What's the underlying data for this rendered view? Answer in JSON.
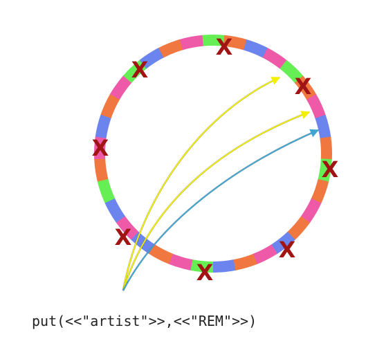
{
  "caption": "put(<<\"artist\">>,<<\"REM\">>)",
  "ring": {
    "segments": [
      "green",
      "orange",
      "blue",
      "pink",
      "green",
      "orange",
      "pink",
      "blue",
      "orange",
      "green",
      "orange",
      "pink",
      "orange",
      "blue",
      "pink",
      "orange",
      "blue",
      "green",
      "pink",
      "orange",
      "blue",
      "pink",
      "blue",
      "green",
      "orange",
      "pink",
      "blue",
      "orange",
      "pink",
      "green",
      "blue",
      "orange",
      "pink"
    ],
    "failed_node_marks": [
      "X",
      "X",
      "X",
      "X",
      "X",
      "X",
      "X",
      "X"
    ]
  },
  "arrows": [
    {
      "color": "yellow",
      "target": "upper ring right"
    },
    {
      "color": "yellow",
      "target": "mid ring right"
    },
    {
      "color": "cyan",
      "target": "lower ring right"
    }
  ],
  "colors": {
    "green": "#66ee55",
    "orange": "#f07840",
    "blue": "#6c84ee",
    "pink": "#ee5aa8",
    "failure_x": "#a01414",
    "yellow_arrow": "#f2f000",
    "cyan_arrow": "#3fa6d2"
  }
}
